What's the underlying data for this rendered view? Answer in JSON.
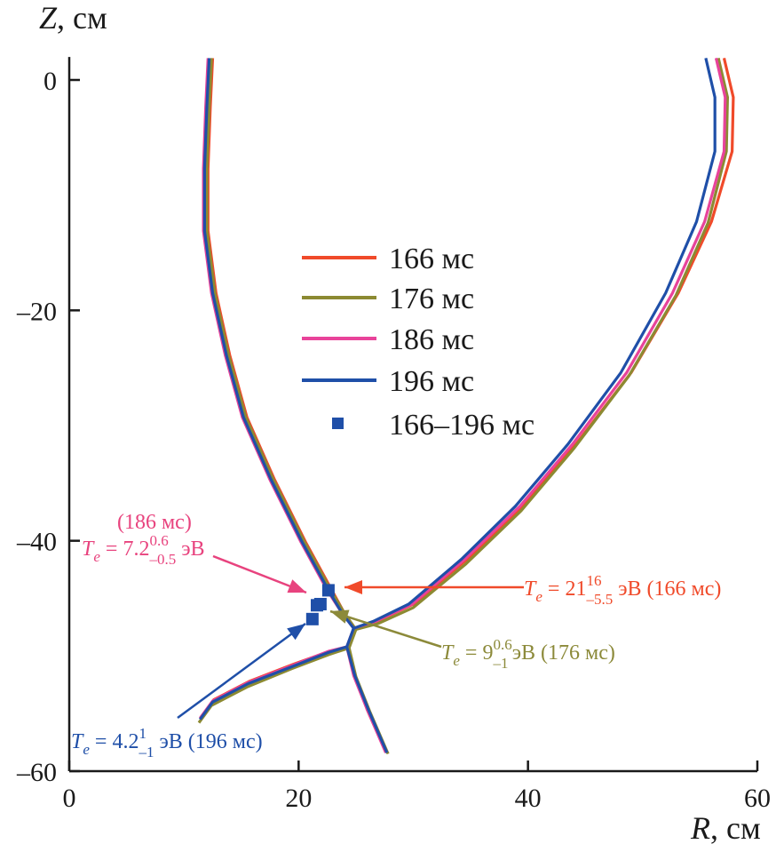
{
  "chart_data": {
    "type": "line",
    "xlabel": {
      "var": "R",
      "unit": ", см"
    },
    "ylabel": {
      "var": "Z",
      "unit": ", см"
    },
    "xlim": [
      0,
      60
    ],
    "ylim": [
      -60,
      2
    ],
    "xticks": [
      0,
      20,
      40,
      60
    ],
    "yticks": [
      0,
      -20,
      -40,
      -60
    ],
    "xtick_labels": [
      "0",
      "20",
      "40",
      "60"
    ],
    "ytick_labels": [
      "0",
      "–20",
      "–40",
      "–60"
    ],
    "grid": false,
    "legend_placement": "center",
    "series": [
      {
        "name": "166 мс",
        "color": "#f04a2a",
        "segments": [
          [
            [
              12.5,
              1.9
            ],
            [
              12.3,
              -2.3
            ],
            [
              12.1,
              -7.7
            ],
            [
              12.1,
              -13.1
            ],
            [
              12.8,
              -18.5
            ],
            [
              14.0,
              -23.9
            ],
            [
              15.5,
              -29.3
            ],
            [
              17.9,
              -34.7
            ],
            [
              20.6,
              -40.1
            ],
            [
              22.9,
              -44.3
            ],
            [
              24.0,
              -46.3
            ],
            [
              24.9,
              -47.6
            ],
            [
              24.3,
              -49.2
            ]
          ],
          [
            [
              24.9,
              -47.6
            ],
            [
              26.8,
              -47.0
            ],
            [
              30.0,
              -45.5
            ],
            [
              34.7,
              -41.6
            ],
            [
              39.5,
              -37.0
            ],
            [
              44.2,
              -31.6
            ],
            [
              49.0,
              -25.4
            ],
            [
              53.1,
              -18.5
            ],
            [
              56.0,
              -12.3
            ],
            [
              57.8,
              -6.2
            ],
            [
              57.9,
              -1.5
            ],
            [
              57.1,
              1.9
            ]
          ],
          [
            [
              24.3,
              -49.2
            ],
            [
              22.7,
              -49.6
            ],
            [
              19.6,
              -50.7
            ],
            [
              15.7,
              -52.2
            ],
            [
              12.6,
              -53.8
            ],
            [
              11.5,
              -55.3
            ]
          ],
          [
            [
              24.3,
              -49.2
            ],
            [
              24.9,
              -51.7
            ],
            [
              26.0,
              -54.7
            ],
            [
              27.6,
              -58.3
            ]
          ]
        ]
      },
      {
        "name": "176 мс",
        "color": "#8c8a32",
        "segments": [
          [
            [
              12.4,
              1.9
            ],
            [
              12.2,
              -2.3
            ],
            [
              12.0,
              -7.7
            ],
            [
              12.0,
              -13.1
            ],
            [
              12.7,
              -18.5
            ],
            [
              13.9,
              -23.9
            ],
            [
              15.4,
              -29.3
            ],
            [
              17.8,
              -34.7
            ],
            [
              20.5,
              -40.1
            ],
            [
              22.8,
              -44.3
            ],
            [
              24.0,
              -46.3
            ],
            [
              25.0,
              -47.7
            ],
            [
              24.4,
              -49.3
            ]
          ],
          [
            [
              25.0,
              -47.7
            ],
            [
              26.9,
              -47.2
            ],
            [
              30.0,
              -45.8
            ],
            [
              34.6,
              -42.0
            ],
            [
              39.4,
              -37.4
            ],
            [
              44.0,
              -32.0
            ],
            [
              48.8,
              -25.7
            ],
            [
              52.9,
              -18.7
            ],
            [
              55.7,
              -12.4
            ],
            [
              57.3,
              -6.2
            ],
            [
              57.4,
              -1.5
            ],
            [
              56.6,
              1.9
            ]
          ],
          [
            [
              24.4,
              -49.3
            ],
            [
              22.6,
              -49.9
            ],
            [
              19.4,
              -51.1
            ],
            [
              15.5,
              -52.7
            ],
            [
              12.4,
              -54.3
            ],
            [
              11.3,
              -55.8
            ]
          ],
          [
            [
              24.4,
              -49.3
            ],
            [
              25.0,
              -51.8
            ],
            [
              26.2,
              -54.8
            ],
            [
              27.8,
              -58.5
            ]
          ]
        ]
      },
      {
        "name": "186 мс",
        "color": "#e8439a",
        "segments": [
          [
            [
              12.1,
              1.9
            ],
            [
              11.9,
              -2.3
            ],
            [
              11.7,
              -7.7
            ],
            [
              11.7,
              -13.1
            ],
            [
              12.4,
              -18.5
            ],
            [
              13.6,
              -23.9
            ],
            [
              15.1,
              -29.3
            ],
            [
              17.5,
              -34.7
            ],
            [
              20.2,
              -40.1
            ],
            [
              22.5,
              -44.3
            ],
            [
              23.8,
              -46.3
            ],
            [
              24.8,
              -47.6
            ],
            [
              24.2,
              -49.2
            ]
          ],
          [
            [
              24.8,
              -47.6
            ],
            [
              26.7,
              -47.0
            ],
            [
              29.9,
              -45.5
            ],
            [
              34.5,
              -41.6
            ],
            [
              39.3,
              -37.0
            ],
            [
              43.9,
              -31.6
            ],
            [
              48.6,
              -25.4
            ],
            [
              52.6,
              -18.5
            ],
            [
              55.4,
              -12.3
            ],
            [
              57.1,
              -6.2
            ],
            [
              57.2,
              -1.5
            ],
            [
              56.4,
              1.9
            ]
          ],
          [
            [
              24.2,
              -49.2
            ],
            [
              22.6,
              -49.6
            ],
            [
              19.5,
              -50.8
            ],
            [
              15.6,
              -52.3
            ],
            [
              12.5,
              -53.9
            ],
            [
              11.4,
              -55.4
            ]
          ],
          [
            [
              24.2,
              -49.2
            ],
            [
              24.8,
              -51.7
            ],
            [
              26.0,
              -54.7
            ],
            [
              27.6,
              -58.4
            ]
          ]
        ]
      },
      {
        "name": "196 мс",
        "color": "#1f4fa8",
        "segments": [
          [
            [
              12.2,
              1.9
            ],
            [
              12.0,
              -2.3
            ],
            [
              11.8,
              -7.7
            ],
            [
              11.8,
              -13.1
            ],
            [
              12.5,
              -18.5
            ],
            [
              13.7,
              -23.9
            ],
            [
              15.2,
              -29.3
            ],
            [
              17.6,
              -34.7
            ],
            [
              20.3,
              -40.1
            ],
            [
              22.6,
              -44.3
            ],
            [
              23.8,
              -46.3
            ],
            [
              24.8,
              -47.6
            ],
            [
              24.2,
              -49.2
            ]
          ],
          [
            [
              24.8,
              -47.6
            ],
            [
              26.5,
              -47.0
            ],
            [
              29.6,
              -45.5
            ],
            [
              34.2,
              -41.6
            ],
            [
              38.9,
              -37.0
            ],
            [
              43.5,
              -31.6
            ],
            [
              48.1,
              -25.4
            ],
            [
              52.0,
              -18.5
            ],
            [
              54.7,
              -12.3
            ],
            [
              56.3,
              -6.2
            ],
            [
              56.3,
              -1.5
            ],
            [
              55.5,
              1.9
            ]
          ],
          [
            [
              24.2,
              -49.2
            ],
            [
              22.6,
              -49.7
            ],
            [
              19.5,
              -50.9
            ],
            [
              15.6,
              -52.4
            ],
            [
              12.5,
              -54.0
            ],
            [
              11.4,
              -55.5
            ]
          ],
          [
            [
              24.2,
              -49.2
            ],
            [
              24.9,
              -51.7
            ],
            [
              26.1,
              -54.7
            ],
            [
              27.7,
              -58.4
            ]
          ]
        ]
      }
    ],
    "points": {
      "name": "166–196 мс",
      "color": "#1f4fa8",
      "values": [
        {
          "time": "166 мс",
          "R": 22.6,
          "Z": -44.3
        },
        {
          "time": "176 мс",
          "R": 21.9,
          "Z": -45.5
        },
        {
          "time": "186 мс",
          "R": 21.6,
          "Z": -45.6
        },
        {
          "time": "196 мс",
          "R": 21.2,
          "Z": -46.8
        }
      ]
    },
    "annotations": [
      {
        "id": "a186",
        "color": "#e8437e",
        "pre": "(186 мс)",
        "var": "T",
        "var_sub": "e",
        "eq": " = 7.2",
        "sup": "0.6",
        "sub": "–0.5",
        "post": " эВ",
        "value": 7.2,
        "err_plus": 0.6,
        "err_minus": 0.5
      },
      {
        "id": "a166",
        "color": "#f04a2a",
        "var": "T",
        "var_sub": "e",
        "eq": " = 21",
        "sup": "16",
        "sub": "–5.5",
        "post": " эВ (166 мс)",
        "value": 21,
        "err_plus": 16,
        "err_minus": 5.5
      },
      {
        "id": "a176",
        "color": "#8c8a3a",
        "var": "T",
        "var_sub": "e",
        "eq": " = 9",
        "sup": "0.6",
        "sub": "–1",
        "post": "эВ (176 мс)",
        "value": 9,
        "err_plus": 0.6,
        "err_minus": 1
      },
      {
        "id": "a196",
        "color": "#1f4fa8",
        "var": "T",
        "var_sub": "e",
        "eq": " = 4.2",
        "sup": "1",
        "sub": "–1",
        "post": " эВ (196 мс)",
        "value": 4.2,
        "err_plus": 1,
        "err_minus": 1
      }
    ]
  }
}
